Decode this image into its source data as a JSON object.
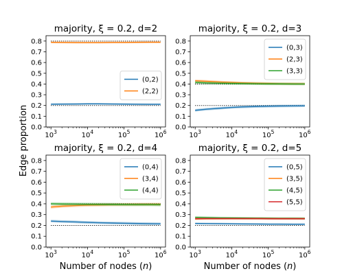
{
  "figure": {
    "ylabel": "Edge proportion",
    "xlabel": "Number of nodes (n)"
  },
  "chart_data": [
    {
      "type": "line",
      "title": "majority, ξ = 0.2, d=2",
      "xscale": "log",
      "x": [
        1000,
        2000,
        5000,
        10000,
        20000,
        50000,
        100000,
        200000,
        500000,
        1000000
      ],
      "xticks": [
        1000,
        10000,
        100000,
        1000000
      ],
      "xtick_labels": [
        "10^3",
        "10^4",
        "10^5",
        "10^6"
      ],
      "ylim": [
        0,
        0.85
      ],
      "yticks": [
        0,
        0.1,
        0.2,
        0.3,
        0.4,
        0.5,
        0.6,
        0.7,
        0.8
      ],
      "ytick_labels": [
        "0.0",
        "0.1",
        "0.2",
        "0.3",
        "0.4",
        "0.5",
        "0.6",
        "0.7",
        "0.8"
      ],
      "legend_position": "center-right",
      "series": [
        {
          "name": "(0,2)",
          "color": "#1f77b4",
          "values": [
            0.212,
            0.213,
            0.214,
            0.215,
            0.215,
            0.214,
            0.213,
            0.212,
            0.211,
            0.211
          ],
          "band": 0.008,
          "reference": 0.2
        },
        {
          "name": "(2,2)",
          "color": "#ff7f0e",
          "values": [
            0.788,
            0.787,
            0.786,
            0.786,
            0.786,
            0.787,
            0.787,
            0.788,
            0.789,
            0.789
          ],
          "band": 0.008,
          "reference": 0.8
        }
      ]
    },
    {
      "type": "line",
      "title": "majority, ξ = 0.2, d=3",
      "xscale": "log",
      "x": [
        1000,
        2000,
        5000,
        10000,
        20000,
        50000,
        100000,
        200000,
        500000,
        1000000
      ],
      "xticks": [
        1000,
        10000,
        100000,
        1000000
      ],
      "xtick_labels": [
        "10^3",
        "10^4",
        "10^5",
        "10^6"
      ],
      "ylim": [
        0,
        0.85
      ],
      "yticks": [
        0,
        0.1,
        0.2,
        0.3,
        0.4,
        0.5,
        0.6,
        0.7,
        0.8
      ],
      "ytick_labels": [
        "0.0",
        "0.1",
        "0.2",
        "0.3",
        "0.4",
        "0.5",
        "0.6",
        "0.7",
        "0.8"
      ],
      "legend_position": "upper-right",
      "series": [
        {
          "name": "(0,3)",
          "color": "#1f77b4",
          "values": [
            0.155,
            0.165,
            0.175,
            0.182,
            0.187,
            0.191,
            0.193,
            0.195,
            0.196,
            0.197
          ],
          "band": 0.012,
          "reference": 0.2
        },
        {
          "name": "(2,3)",
          "color": "#ff7f0e",
          "values": [
            0.43,
            0.425,
            0.418,
            0.414,
            0.41,
            0.407,
            0.405,
            0.403,
            0.402,
            0.401
          ],
          "band": 0.012,
          "reference": 0.4
        },
        {
          "name": "(3,3)",
          "color": "#2ca02c",
          "values": [
            0.415,
            0.41,
            0.407,
            0.405,
            0.404,
            0.402,
            0.401,
            0.401,
            0.4,
            0.4
          ],
          "band": 0.012,
          "reference": 0.4
        }
      ]
    },
    {
      "type": "line",
      "title": "majority, ξ = 0.2, d=4",
      "xscale": "log",
      "x": [
        1000,
        2000,
        5000,
        10000,
        20000,
        50000,
        100000,
        200000,
        500000,
        1000000
      ],
      "xticks": [
        1000,
        10000,
        100000,
        1000000
      ],
      "xtick_labels": [
        "10^3",
        "10^4",
        "10^5",
        "10^6"
      ],
      "ylim": [
        0,
        0.85
      ],
      "yticks": [
        0,
        0.1,
        0.2,
        0.3,
        0.4,
        0.5,
        0.6,
        0.7,
        0.8
      ],
      "ytick_labels": [
        "0.0",
        "0.1",
        "0.2",
        "0.3",
        "0.4",
        "0.5",
        "0.6",
        "0.7",
        "0.8"
      ],
      "legend_position": "upper-right",
      "series": [
        {
          "name": "(0,4)",
          "color": "#1f77b4",
          "values": [
            0.24,
            0.236,
            0.232,
            0.228,
            0.225,
            0.222,
            0.22,
            0.218,
            0.216,
            0.215
          ],
          "band": 0.012,
          "reference": 0.2
        },
        {
          "name": "(3,4)",
          "color": "#ff7f0e",
          "values": [
            0.37,
            0.378,
            0.384,
            0.388,
            0.39,
            0.392,
            0.393,
            0.394,
            0.395,
            0.395
          ],
          "band": 0.014,
          "reference": 0.4
        },
        {
          "name": "(4,4)",
          "color": "#2ca02c",
          "values": [
            0.4,
            0.398,
            0.397,
            0.396,
            0.395,
            0.394,
            0.393,
            0.392,
            0.392,
            0.391
          ],
          "band": 0.014,
          "reference": 0.4
        }
      ]
    },
    {
      "type": "line",
      "title": "majority, ξ = 0.2, d=5",
      "xscale": "log",
      "x": [
        1000,
        2000,
        5000,
        10000,
        20000,
        50000,
        100000,
        200000,
        500000,
        1000000
      ],
      "xticks": [
        1000,
        10000,
        100000,
        1000000
      ],
      "xtick_labels": [
        "10^3",
        "10^4",
        "10^5",
        "10^6"
      ],
      "ylim": [
        0,
        0.85
      ],
      "yticks": [
        0,
        0.1,
        0.2,
        0.3,
        0.4,
        0.5,
        0.6,
        0.7,
        0.8
      ],
      "ytick_labels": [
        "0.0",
        "0.1",
        "0.2",
        "0.3",
        "0.4",
        "0.5",
        "0.6",
        "0.7",
        "0.8"
      ],
      "legend_position": "upper-right",
      "series": [
        {
          "name": "(0,5)",
          "color": "#1f77b4",
          "values": [
            0.218,
            0.217,
            0.216,
            0.215,
            0.214,
            0.213,
            0.212,
            0.212,
            0.211,
            0.211
          ],
          "band": 0.008,
          "reference": 0.2
        },
        {
          "name": "(3,5)",
          "color": "#ff7f0e",
          "values": [
            0.26,
            0.262,
            0.263,
            0.264,
            0.264,
            0.264,
            0.264,
            0.263,
            0.263,
            0.263
          ],
          "band": 0.01,
          "reference": null
        },
        {
          "name": "(4,5)",
          "color": "#2ca02c",
          "values": [
            0.275,
            0.272,
            0.27,
            0.269,
            0.268,
            0.267,
            0.266,
            0.265,
            0.265,
            0.264
          ],
          "band": 0.01,
          "reference": null
        },
        {
          "name": "(5,5)",
          "color": "#d62728",
          "values": [
            0.262,
            0.263,
            0.263,
            0.263,
            0.263,
            0.263,
            0.262,
            0.262,
            0.262,
            0.262
          ],
          "band": 0.008,
          "reference": null
        }
      ]
    }
  ]
}
